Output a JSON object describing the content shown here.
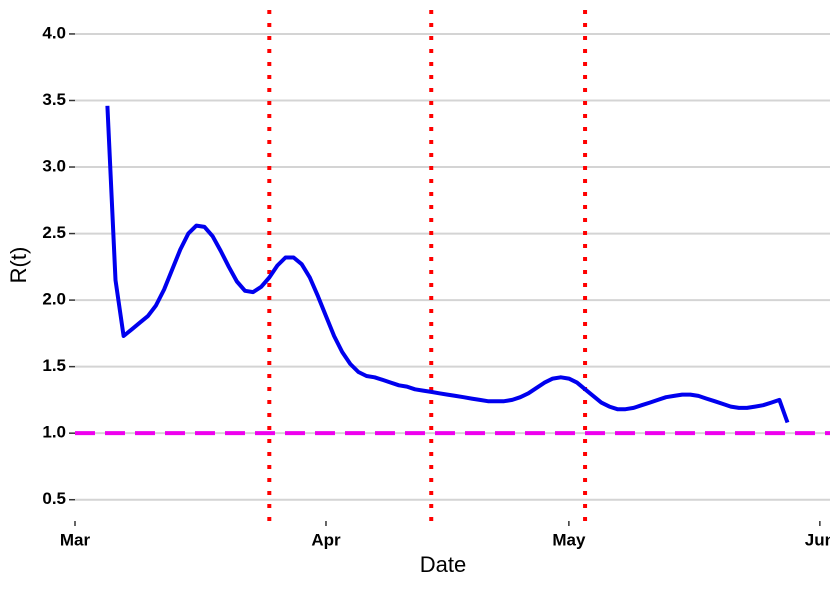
{
  "chart_data": {
    "type": "line",
    "x_label": "Date",
    "y_label": "R(t)",
    "x": [
      4,
      5,
      6,
      7,
      8,
      9,
      10,
      11,
      12,
      13,
      14,
      15,
      16,
      17,
      18,
      19,
      20,
      21,
      22,
      23,
      24,
      25,
      26,
      27,
      28,
      29,
      30,
      31,
      32,
      33,
      34,
      35,
      36,
      37,
      38,
      39,
      40,
      41,
      42,
      43,
      44,
      45,
      46,
      47,
      48,
      49,
      50,
      51,
      52,
      53,
      54,
      55,
      56,
      57,
      58,
      59,
      60,
      61,
      62,
      63,
      64,
      65,
      66,
      67,
      68,
      69,
      70,
      71,
      72,
      73,
      74,
      75,
      76,
      77,
      78,
      79,
      80,
      81,
      82,
      83,
      84,
      85,
      86,
      87,
      88
    ],
    "series": [
      {
        "color": "#0000ee",
        "values": [
          3.46,
          2.15,
          1.73,
          1.78,
          1.83,
          1.88,
          1.96,
          2.08,
          2.23,
          2.38,
          2.5,
          2.56,
          2.55,
          2.48,
          2.37,
          2.25,
          2.14,
          2.07,
          2.06,
          2.1,
          2.17,
          2.26,
          2.32,
          2.32,
          2.27,
          2.17,
          2.03,
          1.88,
          1.73,
          1.61,
          1.52,
          1.46,
          1.43,
          1.42,
          1.4,
          1.38,
          1.36,
          1.35,
          1.33,
          1.32,
          1.31,
          1.3,
          1.29,
          1.28,
          1.27,
          1.26,
          1.25,
          1.24,
          1.24,
          1.24,
          1.25,
          1.27,
          1.3,
          1.34,
          1.38,
          1.41,
          1.42,
          1.41,
          1.38,
          1.33,
          1.28,
          1.23,
          1.2,
          1.18,
          1.18,
          1.19,
          1.21,
          1.23,
          1.25,
          1.27,
          1.28,
          1.29,
          1.29,
          1.28,
          1.26,
          1.24,
          1.22,
          1.2,
          1.19,
          1.19,
          1.2,
          1.21,
          1.23,
          1.25,
          1.08
        ]
      }
    ],
    "xlim": [
      0,
      93.5
    ],
    "xticks": [
      {
        "value": 0,
        "label": "Mar"
      },
      {
        "value": 31,
        "label": "Apr"
      },
      {
        "value": 61,
        "label": "May"
      },
      {
        "value": 92,
        "label": "Jun"
      }
    ],
    "ylim": [
      0.34,
      4.18
    ],
    "yticks": [
      0.5,
      {
        "value": 1,
        "label": "1.0"
      },
      1.5,
      {
        "value": 2,
        "label": "2.0"
      },
      2.5,
      {
        "value": 3,
        "label": "3.0"
      },
      3.5,
      {
        "value": 4,
        "label": "4.0"
      }
    ],
    "grid": true,
    "hlines": [
      {
        "value": 1,
        "color": "#ee00ee"
      }
    ],
    "vlines": [
      {
        "value": 24,
        "color": "#ff0000"
      },
      {
        "value": 44,
        "color": "#ff0000"
      },
      {
        "value": 63,
        "color": "#ff0000"
      }
    ]
  }
}
